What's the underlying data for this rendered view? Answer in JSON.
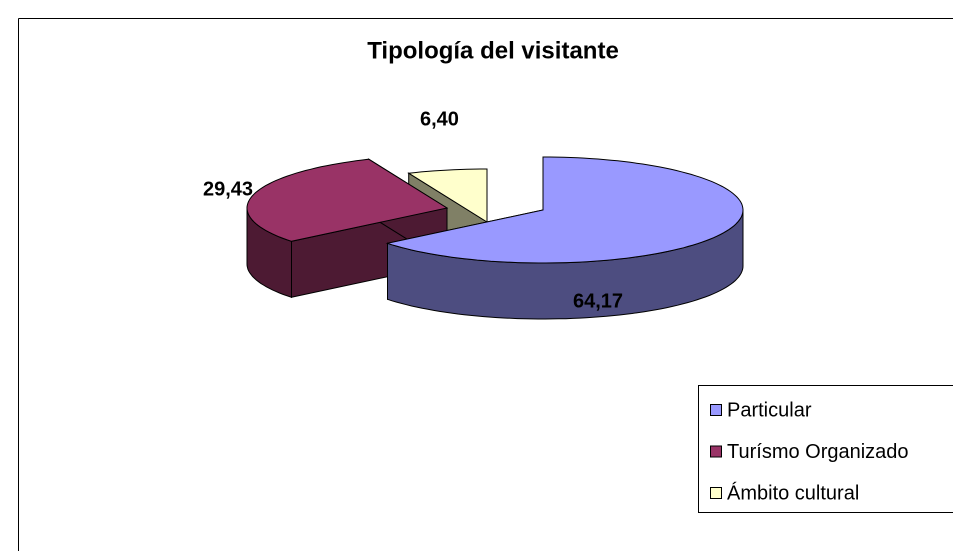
{
  "chart_data": {
    "type": "pie3d",
    "title": "Tipología del visitante",
    "categories": [
      "Particular",
      "Turísmo Organizado",
      "Ámbito cultural"
    ],
    "values": [
      64.17,
      29.43,
      6.4
    ],
    "value_labels": [
      "64,17",
      "29,43",
      "6,40"
    ],
    "colors": [
      "#9999ff",
      "#993366",
      "#ffffcc"
    ],
    "legend": "right"
  }
}
